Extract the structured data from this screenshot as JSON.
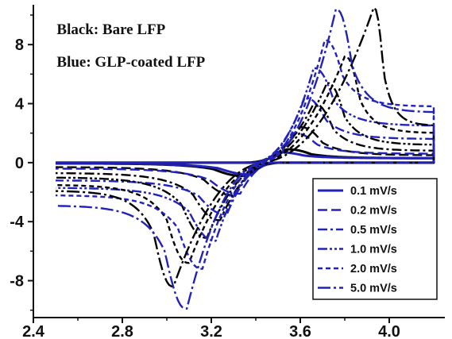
{
  "chart_data": {
    "type": "line",
    "title": "",
    "xlabel": "",
    "ylabel": "",
    "xlim": [
      2.4,
      4.25
    ],
    "ylim": [
      -10.5,
      10.7
    ],
    "x_ticks": [
      {
        "value": 2.4,
        "label": "2.4"
      },
      {
        "value": 2.8,
        "label": "2.8"
      },
      {
        "value": 3.2,
        "label": "3.2"
      },
      {
        "value": 3.6,
        "label": "3.6"
      },
      {
        "value": 4.0,
        "label": "4.0"
      }
    ],
    "y_ticks": [
      {
        "value": 8,
        "label": "8"
      },
      {
        "value": 4,
        "label": "4"
      },
      {
        "value": 0,
        "label": "0"
      },
      {
        "value": -4,
        "label": "-4"
      },
      {
        "value": -8,
        "label": "-8"
      }
    ],
    "annotations": [
      {
        "text": "Black:  Bare LFP",
        "x": 2.505,
        "y": 8.7
      },
      {
        "text": "Blue: GLP-coated LFP",
        "x": 2.505,
        "y": 6.5
      }
    ],
    "legend": {
      "placement": "bottom-right",
      "entries": [
        {
          "label": "0.1 mV/s",
          "dash": "solid"
        },
        {
          "label": "0.2 mV/s",
          "dash": "dash"
        },
        {
          "label": "0.5 mV/s",
          "dash": "dash-dot"
        },
        {
          "label": "1.0 mV/s",
          "dash": "dash-dot-dot"
        },
        {
          "label": "2.0 mV/s",
          "dash": "short-dash"
        },
        {
          "label": "5.0 mV/s",
          "dash": "dash-dot-long"
        }
      ]
    },
    "colors": {
      "bare": "#000000",
      "coated": "#2222bb"
    },
    "series": [
      {
        "sample": "bare",
        "rate": "0.1 mV/s",
        "dash": "solid",
        "ox_peak": [
          3.54,
          0.9
        ],
        "red_peak": [
          3.35,
          -0.9
        ],
        "ox_end": 0.3,
        "red_end": -0.05,
        "ox_start": 3.35,
        "red_start": 3.52
      },
      {
        "sample": "coated",
        "rate": "0.1 mV/s",
        "dash": "solid",
        "ox_peak": [
          3.5,
          0.7
        ],
        "red_peak": [
          3.38,
          -0.8
        ],
        "ox_end": 0.3,
        "red_end": -0.05,
        "ox_start": 3.38,
        "red_start": 3.5
      },
      {
        "sample": "bare",
        "rate": "0.2 mV/s",
        "dash": "dash",
        "ox_peak": [
          3.6,
          2.4
        ],
        "red_peak": [
          3.3,
          -2.2
        ],
        "ox_end": 0.5,
        "red_end": -0.3,
        "ox_start": 3.36,
        "red_start": 3.5
      },
      {
        "sample": "coated",
        "rate": "0.2 mV/s",
        "dash": "dash",
        "ox_peak": [
          3.57,
          2.0
        ],
        "red_peak": [
          3.33,
          -2.1
        ],
        "ox_end": 0.6,
        "red_end": -0.4,
        "ox_start": 3.37,
        "red_start": 3.49
      },
      {
        "sample": "bare",
        "rate": "0.5 mV/s",
        "dash": "dash-dot",
        "ox_peak": [
          3.66,
          4.0
        ],
        "red_peak": [
          3.24,
          -3.9
        ],
        "ox_end": 0.8,
        "red_end": -0.7,
        "ox_start": 3.37,
        "red_start": 3.49
      },
      {
        "sample": "coated",
        "rate": "0.5 mV/s",
        "dash": "dash-dot",
        "ox_peak": [
          3.62,
          4.4
        ],
        "red_peak": [
          3.27,
          -3.5
        ],
        "ox_end": 1.6,
        "red_end": -1.2,
        "ox_start": 3.38,
        "red_start": 3.48
      },
      {
        "sample": "bare",
        "rate": "1.0 mV/s",
        "dash": "dash-dot-dot",
        "ox_peak": [
          3.72,
          5.4
        ],
        "red_peak": [
          3.18,
          -5.1
        ],
        "ox_end": 1.2,
        "red_end": -1.0,
        "ox_start": 3.38,
        "red_start": 3.48
      },
      {
        "sample": "coated",
        "rate": "1.0 mV/s",
        "dash": "dash-dot-dot",
        "ox_peak": [
          3.66,
          6.4
        ],
        "red_peak": [
          3.22,
          -5.3
        ],
        "ox_end": 2.5,
        "red_end": -1.7,
        "ox_start": 3.39,
        "red_start": 3.47
      },
      {
        "sample": "bare",
        "rate": "2.0 mV/s",
        "dash": "short-dash",
        "ox_peak": [
          3.8,
          7.2
        ],
        "red_peak": [
          3.1,
          -6.8
        ],
        "ox_end": 2.0,
        "red_end": -1.5,
        "ox_start": 3.39,
        "red_start": 3.47
      },
      {
        "sample": "coated",
        "rate": "2.0 mV/s",
        "dash": "short-dash",
        "ox_peak": [
          3.71,
          8.3
        ],
        "red_peak": [
          3.16,
          -7.2
        ],
        "ox_end": 3.8,
        "red_end": -2.2,
        "ox_start": 3.4,
        "red_start": 3.46
      },
      {
        "sample": "bare",
        "rate": "5.0 mV/s",
        "dash": "dash-dot-long",
        "ox_peak": [
          3.93,
          10.5
        ],
        "red_peak": [
          3.03,
          -8.4
        ],
        "ox_end": 2.5,
        "red_end": -1.9,
        "ox_start": 3.4,
        "red_start": 3.46
      },
      {
        "sample": "coated",
        "rate": "5.0 mV/s",
        "dash": "dash-dot-long",
        "ox_peak": [
          3.76,
          10.4
        ],
        "red_peak": [
          3.09,
          -9.9
        ],
        "ox_end": 3.4,
        "red_end": -2.9,
        "ox_start": 3.41,
        "red_start": 3.45
      }
    ]
  }
}
